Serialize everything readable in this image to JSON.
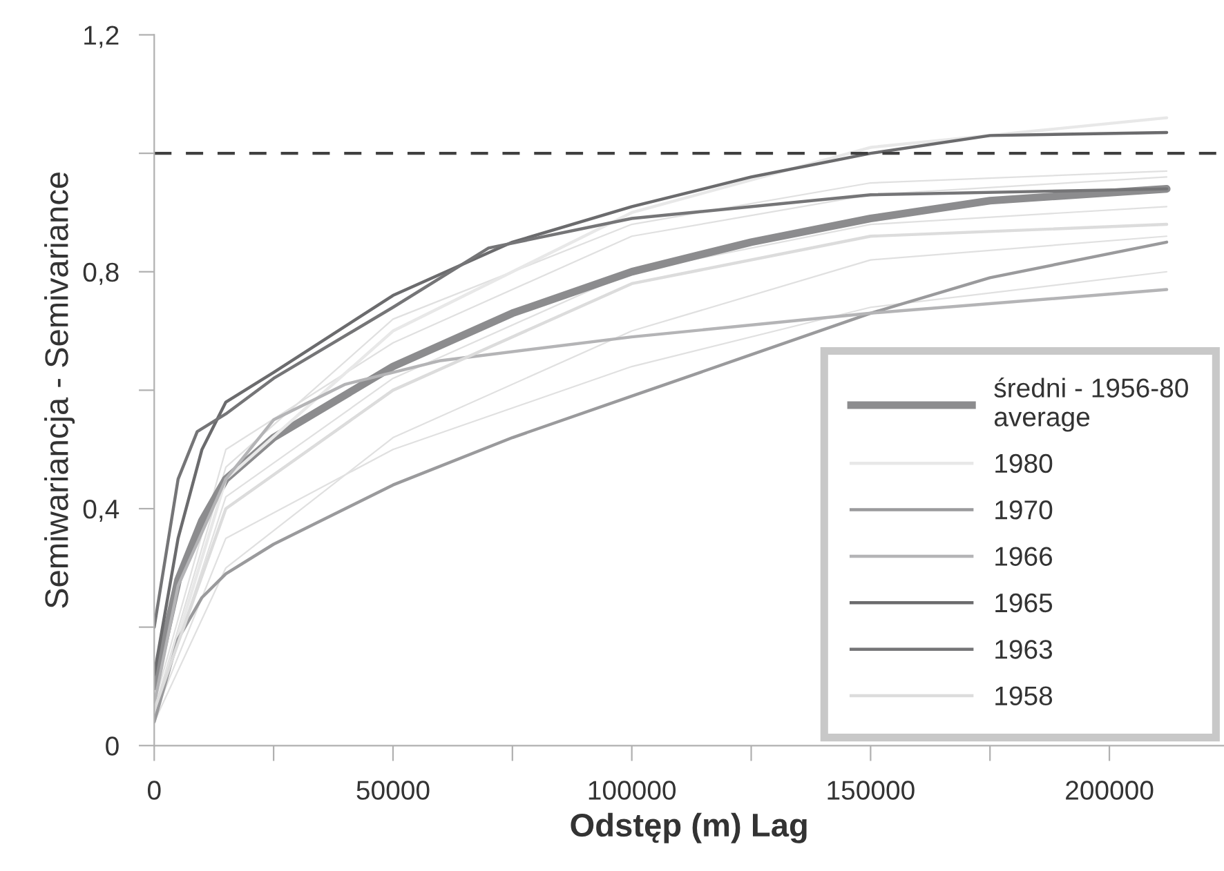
{
  "chart_data": {
    "type": "line",
    "xlabel": "Odstęp (m) Lag",
    "ylabel": "Semiwariancja - Semivariance",
    "xlim": [
      0,
      224000
    ],
    "ylim": [
      0,
      1.2
    ],
    "xticks": [
      0,
      {
        "value": 25000,
        "label": null
      },
      50000,
      {
        "value": 75000,
        "label": null
      },
      100000,
      {
        "value": 125000,
        "label": null
      },
      150000,
      {
        "value": 175000,
        "label": null
      },
      200000
    ],
    "yticks": [
      0,
      {
        "value": 0.2,
        "label": null
      },
      {
        "value": 0.4,
        "label": "0,4"
      },
      {
        "value": 0.6,
        "label": null
      },
      {
        "value": 0.8,
        "label": "0,8"
      },
      {
        "value": 1.0,
        "label": null
      },
      {
        "value": 1.2,
        "label": "1,2"
      }
    ],
    "grid": false,
    "legend": "bottom right",
    "line_style": "solid",
    "marker": "none",
    "ref_lines": [
      {
        "axis": "y",
        "value": 1.0,
        "color": "#404040",
        "line_style": "dashed"
      }
    ],
    "series": [
      {
        "color": "#e0e0e0",
        "x": [
          0,
          15000,
          50000,
          100000,
          150000,
          212000
        ],
        "values": [
          0.06,
          0.47,
          0.72,
          0.88,
          0.95,
          0.97
        ]
      },
      {
        "color": "#e0e0e0",
        "x": [
          0,
          15000,
          50000,
          100000,
          150000,
          212000
        ],
        "values": [
          0.05,
          0.42,
          0.62,
          0.8,
          0.88,
          0.91
        ]
      },
      {
        "color": "#e0e0e0",
        "x": [
          0,
          15000,
          50000,
          100000,
          150000,
          212000
        ],
        "values": [
          0.05,
          0.35,
          0.5,
          0.64,
          0.74,
          0.8
        ]
      },
      {
        "color": "#e0e0e0",
        "x": [
          0,
          15000,
          50000,
          100000,
          150000,
          212000
        ],
        "values": [
          0.07,
          0.5,
          0.68,
          0.86,
          0.93,
          0.96
        ]
      },
      {
        "color": "#e0e0e0",
        "x": [
          0,
          15000,
          50000,
          100000,
          150000,
          212000
        ],
        "values": [
          0.04,
          0.3,
          0.52,
          0.7,
          0.82,
          0.86
        ]
      },
      {
        "name": "średni - 1956-80\naverage",
        "color": "#8c8c8e",
        "x": [
          0,
          5000,
          10000,
          15000,
          25000,
          50000,
          75000,
          100000,
          125000,
          150000,
          175000,
          212000
        ],
        "values": [
          0.1,
          0.28,
          0.38,
          0.45,
          0.52,
          0.64,
          0.73,
          0.8,
          0.85,
          0.89,
          0.92,
          0.94
        ]
      },
      {
        "name": "1980",
        "color": "#e8e8e8",
        "x": [
          0,
          15000,
          50000,
          100000,
          150000,
          212000
        ],
        "values": [
          0.05,
          0.45,
          0.7,
          0.9,
          1.01,
          1.06
        ]
      },
      {
        "name": "1970",
        "color": "#9a9a9c",
        "x": [
          0,
          5000,
          10000,
          15000,
          25000,
          50000,
          75000,
          100000,
          125000,
          150000,
          175000,
          212000
        ],
        "values": [
          0.04,
          0.18,
          0.25,
          0.29,
          0.34,
          0.44,
          0.52,
          0.59,
          0.66,
          0.73,
          0.79,
          0.85
        ]
      },
      {
        "name": "1966",
        "color": "#b4b4b6",
        "x": [
          0,
          5000,
          15000,
          25000,
          40000,
          60000,
          100000,
          150000,
          212000
        ],
        "values": [
          0.07,
          0.27,
          0.45,
          0.55,
          0.61,
          0.65,
          0.69,
          0.73,
          0.77
        ]
      },
      {
        "name": "1965",
        "color": "#6b6b6d",
        "x": [
          0,
          5000,
          10000,
          15000,
          25000,
          50000,
          75000,
          100000,
          125000,
          150000,
          175000,
          212000
        ],
        "values": [
          0.12,
          0.35,
          0.5,
          0.58,
          0.63,
          0.76,
          0.85,
          0.91,
          0.96,
          1.0,
          1.03,
          1.035
        ]
      },
      {
        "name": "1963",
        "color": "#757577",
        "x": [
          0,
          5000,
          9000,
          15000,
          25000,
          50000,
          70000,
          100000,
          150000,
          212000
        ],
        "values": [
          0.2,
          0.45,
          0.53,
          0.56,
          0.62,
          0.74,
          0.84,
          0.89,
          0.93,
          0.94
        ]
      },
      {
        "name": "1958",
        "color": "#dcdcdc",
        "x": [
          0,
          15000,
          50000,
          100000,
          150000,
          212000
        ],
        "values": [
          0.06,
          0.4,
          0.6,
          0.78,
          0.86,
          0.88
        ]
      }
    ]
  }
}
